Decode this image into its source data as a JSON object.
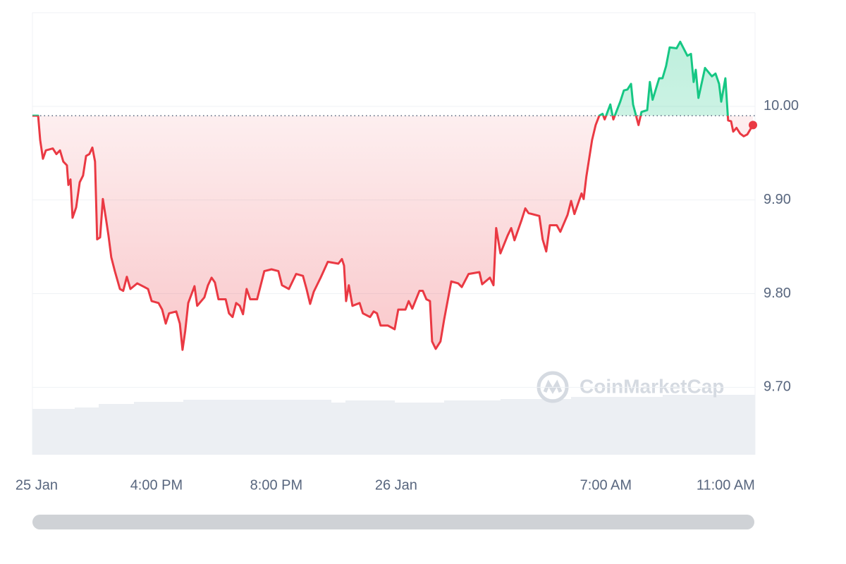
{
  "chart_data": {
    "type": "line",
    "watermark": "CoinMarketCap",
    "series": [
      {
        "color": "#ea3943",
        "up_color": "#16c784",
        "x": [
          -12.14,
          -11.95,
          -11.88,
          -11.79,
          -11.69,
          -11.46,
          -11.34,
          -11.22,
          -11.11,
          -10.99,
          -10.94,
          -10.87,
          -10.8,
          -10.68,
          -10.56,
          -10.45,
          -10.35,
          -10.24,
          -10.14,
          -10.05,
          -9.98,
          -9.88,
          -9.79,
          -9.69,
          -9.6,
          -9.51,
          -9.39,
          -9.22,
          -9.11,
          -8.99,
          -8.87,
          -8.64,
          -8.4,
          -8.28,
          -8.16,
          -7.93,
          -7.81,
          -7.69,
          -7.58,
          -7.34,
          -7.22,
          -7.13,
          -7.04,
          -6.94,
          -6.73,
          -6.64,
          -6.4,
          -6.28,
          -6.16,
          -6.05,
          -5.93,
          -5.69,
          -5.58,
          -5.46,
          -5.34,
          -5.22,
          -5.11,
          -4.99,
          -4.87,
          -4.64,
          -4.4,
          -4.16,
          -3.93,
          -3.81,
          -3.58,
          -3.34,
          -3.11,
          -2.99,
          -2.87,
          -2.75,
          -2.52,
          -2.28,
          -1.93,
          -1.81,
          -1.74,
          -1.67,
          -1.58,
          -1.46,
          -1.22,
          -1.11,
          -0.87,
          -0.75,
          -0.64,
          -0.52,
          -0.28,
          -0.05,
          0.07,
          0.31,
          0.42,
          0.54,
          0.78,
          0.89,
          1.01,
          1.13,
          1.2,
          1.32,
          1.48,
          1.6,
          1.84,
          2.07,
          2.19,
          2.42,
          2.78,
          2.87,
          3.13,
          3.25,
          3.34,
          3.48,
          3.72,
          3.84,
          3.95,
          4.19,
          4.31,
          4.42,
          4.78,
          4.89,
          5.01,
          5.13,
          5.36,
          5.48,
          5.72,
          5.84,
          5.95,
          6.19,
          6.26,
          6.35,
          6.54,
          6.66,
          6.78,
          6.89,
          6.96,
          7.15,
          7.25,
          7.48,
          7.6,
          7.72,
          7.84,
          7.91,
          8.09,
          8.19,
          8.38,
          8.47,
          8.56,
          8.78,
          8.89,
          9.01,
          9.13,
          9.36,
          9.48,
          9.72,
          9.84,
          9.93,
          10.0,
          10.09,
          10.31,
          10.54,
          10.66,
          10.78,
          10.85,
          10.99,
          11.08,
          11.18,
          11.25,
          11.36,
          11.48,
          11.6,
          11.72,
          11.91
        ],
        "values": [
          9.99,
          9.99,
          9.964,
          9.944,
          9.953,
          9.955,
          9.949,
          9.953,
          9.941,
          9.937,
          9.916,
          9.922,
          9.881,
          9.892,
          9.919,
          9.926,
          9.947,
          9.949,
          9.956,
          9.941,
          9.858,
          9.86,
          9.901,
          9.881,
          9.862,
          9.839,
          9.824,
          9.805,
          9.803,
          9.818,
          9.805,
          9.811,
          9.807,
          9.805,
          9.792,
          9.79,
          9.783,
          9.768,
          9.779,
          9.781,
          9.768,
          9.74,
          9.76,
          9.79,
          9.808,
          9.787,
          9.796,
          9.809,
          9.817,
          9.812,
          9.794,
          9.794,
          9.779,
          9.775,
          9.79,
          9.787,
          9.778,
          9.805,
          9.794,
          9.794,
          9.824,
          9.826,
          9.824,
          9.809,
          9.805,
          9.821,
          9.819,
          9.805,
          9.789,
          9.802,
          9.817,
          9.834,
          9.832,
          9.837,
          9.83,
          9.792,
          9.809,
          9.787,
          9.79,
          9.779,
          9.775,
          9.781,
          9.779,
          9.766,
          9.766,
          9.762,
          9.783,
          9.783,
          9.792,
          9.784,
          9.803,
          9.803,
          9.794,
          9.792,
          9.749,
          9.741,
          9.749,
          9.772,
          9.813,
          9.811,
          9.807,
          9.821,
          9.823,
          9.81,
          9.817,
          9.809,
          9.87,
          9.843,
          9.862,
          9.87,
          9.857,
          9.879,
          9.891,
          9.886,
          9.883,
          9.858,
          9.845,
          9.873,
          9.873,
          9.866,
          9.884,
          9.899,
          9.885,
          9.907,
          9.901,
          9.925,
          9.964,
          9.98,
          9.99,
          9.992,
          9.986,
          10.002,
          9.986,
          10.005,
          10.017,
          10.018,
          10.024,
          10.002,
          9.98,
          9.994,
          9.996,
          10.026,
          10.007,
          10.03,
          10.03,
          10.043,
          10.063,
          10.062,
          10.069,
          10.054,
          10.056,
          10.026,
          10.039,
          10.009,
          10.041,
          10.032,
          10.035,
          10.024,
          10.005,
          10.03,
          9.985,
          9.984,
          9.973,
          9.977,
          9.971,
          9.968,
          9.97,
          9.98
        ]
      }
    ],
    "xlim": [
      -12.14,
      11.98
    ],
    "xticks": [
      {
        "value": -12,
        "label": "25 Jan"
      },
      {
        "value": -8,
        "label": "4:00 PM"
      },
      {
        "value": -4,
        "label": "8:00 PM"
      },
      {
        "value": 0,
        "label": "26 Jan"
      },
      {
        "value": 7,
        "label": "7:00 AM"
      },
      {
        "value": 11,
        "label": "11:00 AM"
      }
    ],
    "ylim": [
      9.628,
      10.1
    ],
    "yticks": [
      {
        "value": 9.7,
        "label": "9.70"
      },
      {
        "value": 9.8,
        "label": "9.80"
      },
      {
        "value": 9.9,
        "label": "9.90"
      },
      {
        "value": 10,
        "label": "10.00"
      }
    ],
    "grid": true
  }
}
